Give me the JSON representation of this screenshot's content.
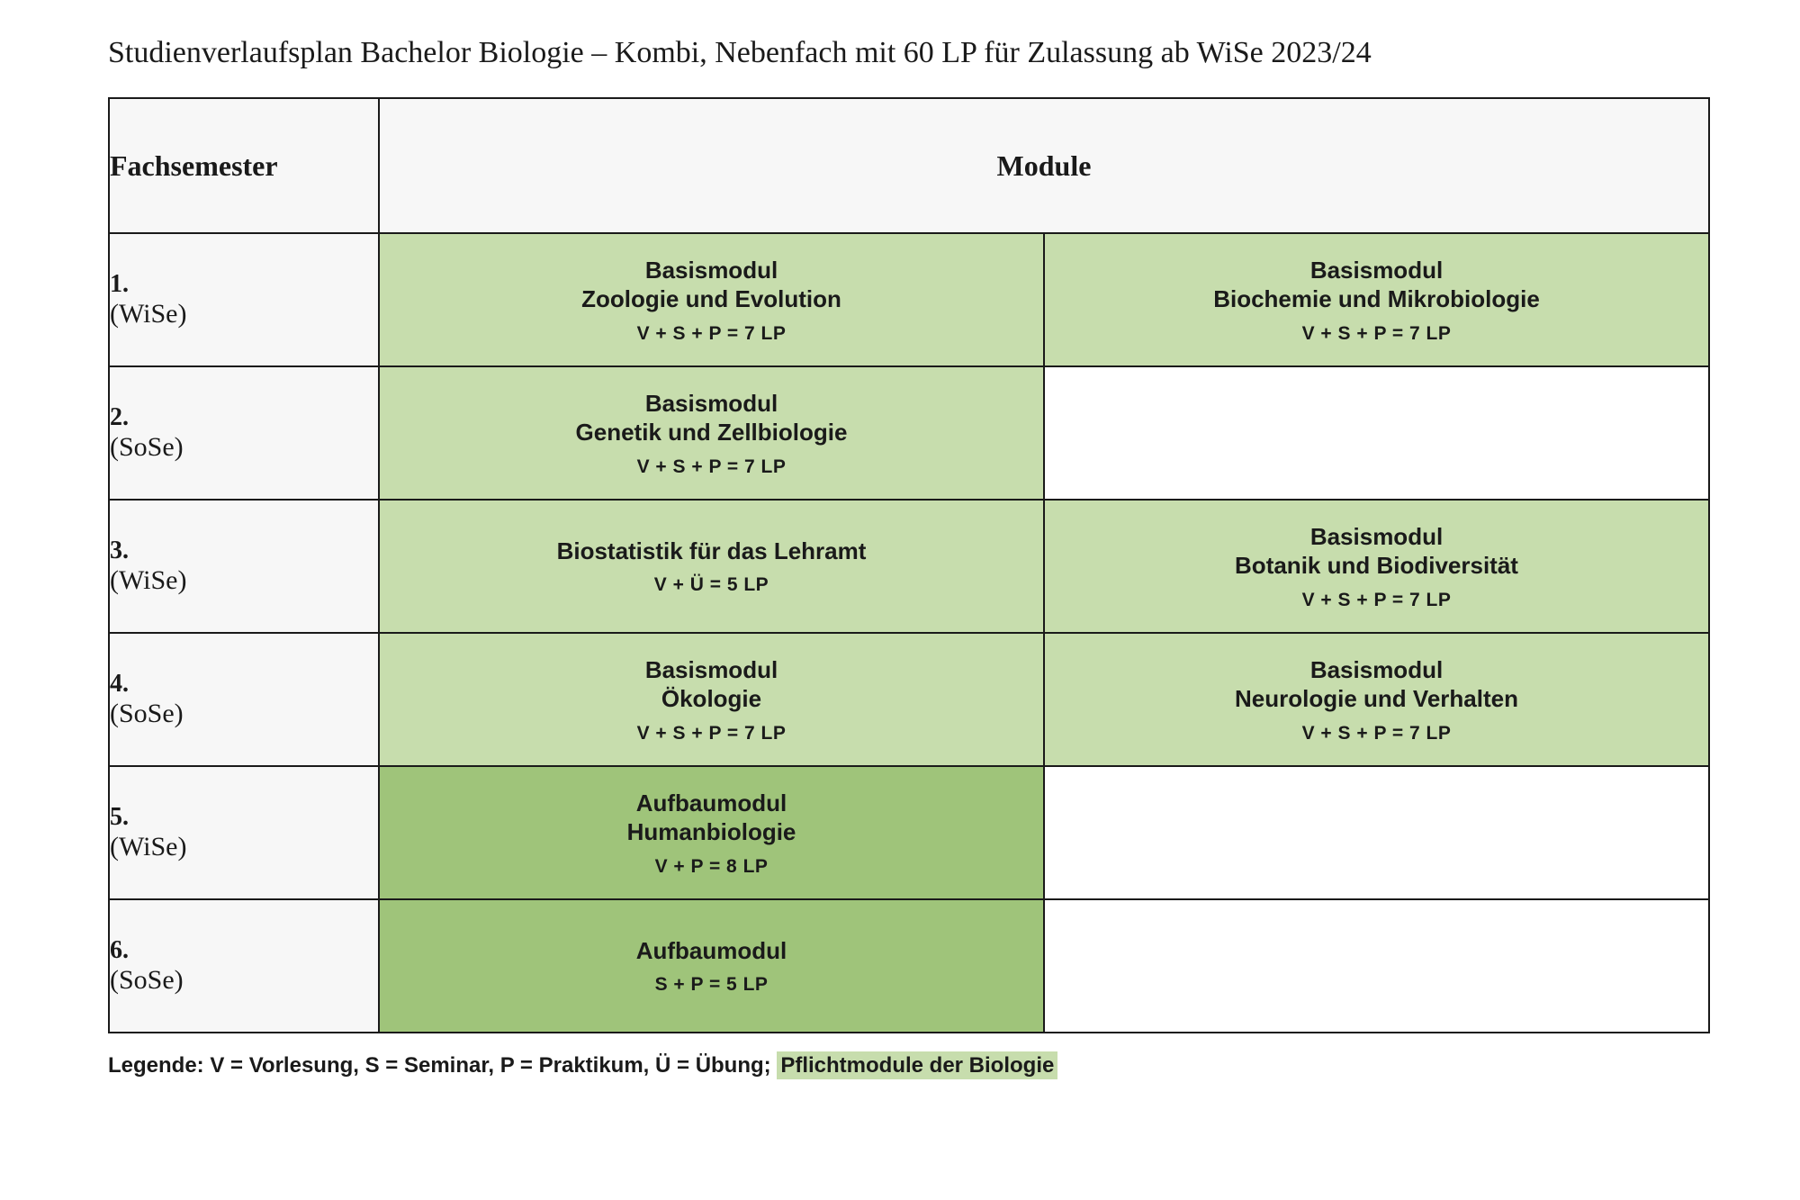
{
  "title": "Studienverlaufsplan Bachelor Biologie – Kombi, Nebenfach mit 60 LP für Zulassung ab WiSe 2023/24",
  "colors": {
    "page_bg": "#ffffff",
    "header_bg": "#f7f7f7",
    "border": "#1a1a1a",
    "light_green": "#c7ddad",
    "dark_green": "#9fc47a",
    "legend_swatch": "#c7ddad",
    "text": "#1a1a1a"
  },
  "header": {
    "semester": "Fachsemester",
    "module": "Module"
  },
  "rows": [
    {
      "sem_num": "1.",
      "sem_term": "(WiSe)",
      "left": {
        "title_l1": "Basismodul",
        "title_l2": "Zoologie und Evolution",
        "sub": "V + S + P = 7 LP",
        "fill": "light_green"
      },
      "right": {
        "title_l1": "Basismodul",
        "title_l2": "Biochemie und Mikrobiologie",
        "sub": "V + S + P = 7 LP",
        "fill": "light_green"
      }
    },
    {
      "sem_num": "2.",
      "sem_term": "(SoSe)",
      "left": {
        "title_l1": "Basismodul",
        "title_l2": "Genetik und Zellbiologie",
        "sub": "V + S + P = 7 LP",
        "fill": "light_green"
      },
      "right": null
    },
    {
      "sem_num": "3.",
      "sem_term": "(WiSe)",
      "left": {
        "title_l1": "Biostatistik für das Lehramt",
        "title_l2": "",
        "sub": "V + Ü = 5 LP",
        "fill": "light_green"
      },
      "right": {
        "title_l1": "Basismodul",
        "title_l2": "Botanik und Biodiversität",
        "sub": "V + S + P = 7 LP",
        "fill": "light_green"
      }
    },
    {
      "sem_num": "4.",
      "sem_term": "(SoSe)",
      "left": {
        "title_l1": "Basismodul",
        "title_l2": "Ökologie",
        "sub": "V + S + P = 7 LP",
        "fill": "light_green"
      },
      "right": {
        "title_l1": "Basismodul",
        "title_l2": "Neurologie und Verhalten",
        "sub": "V + S + P = 7 LP",
        "fill": "light_green"
      }
    },
    {
      "sem_num": "5.",
      "sem_term": "(WiSe)",
      "left": {
        "title_l1": "Aufbaumodul",
        "title_l2": "Humanbiologie",
        "sub": "V + P = 8 LP",
        "fill": "dark_green"
      },
      "right": null
    },
    {
      "sem_num": "6.",
      "sem_term": "(SoSe)",
      "left": {
        "title_l1": "Aufbaumodul",
        "title_l2": "",
        "sub": "S + P = 5 LP",
        "fill": "dark_green"
      },
      "right": null
    }
  ],
  "legend": {
    "prefix": "Legende: V = Vorlesung, S = Seminar, P = Praktikum, Ü = Übung; ",
    "swatch_label": "Pflichtmodule der Biologie"
  }
}
